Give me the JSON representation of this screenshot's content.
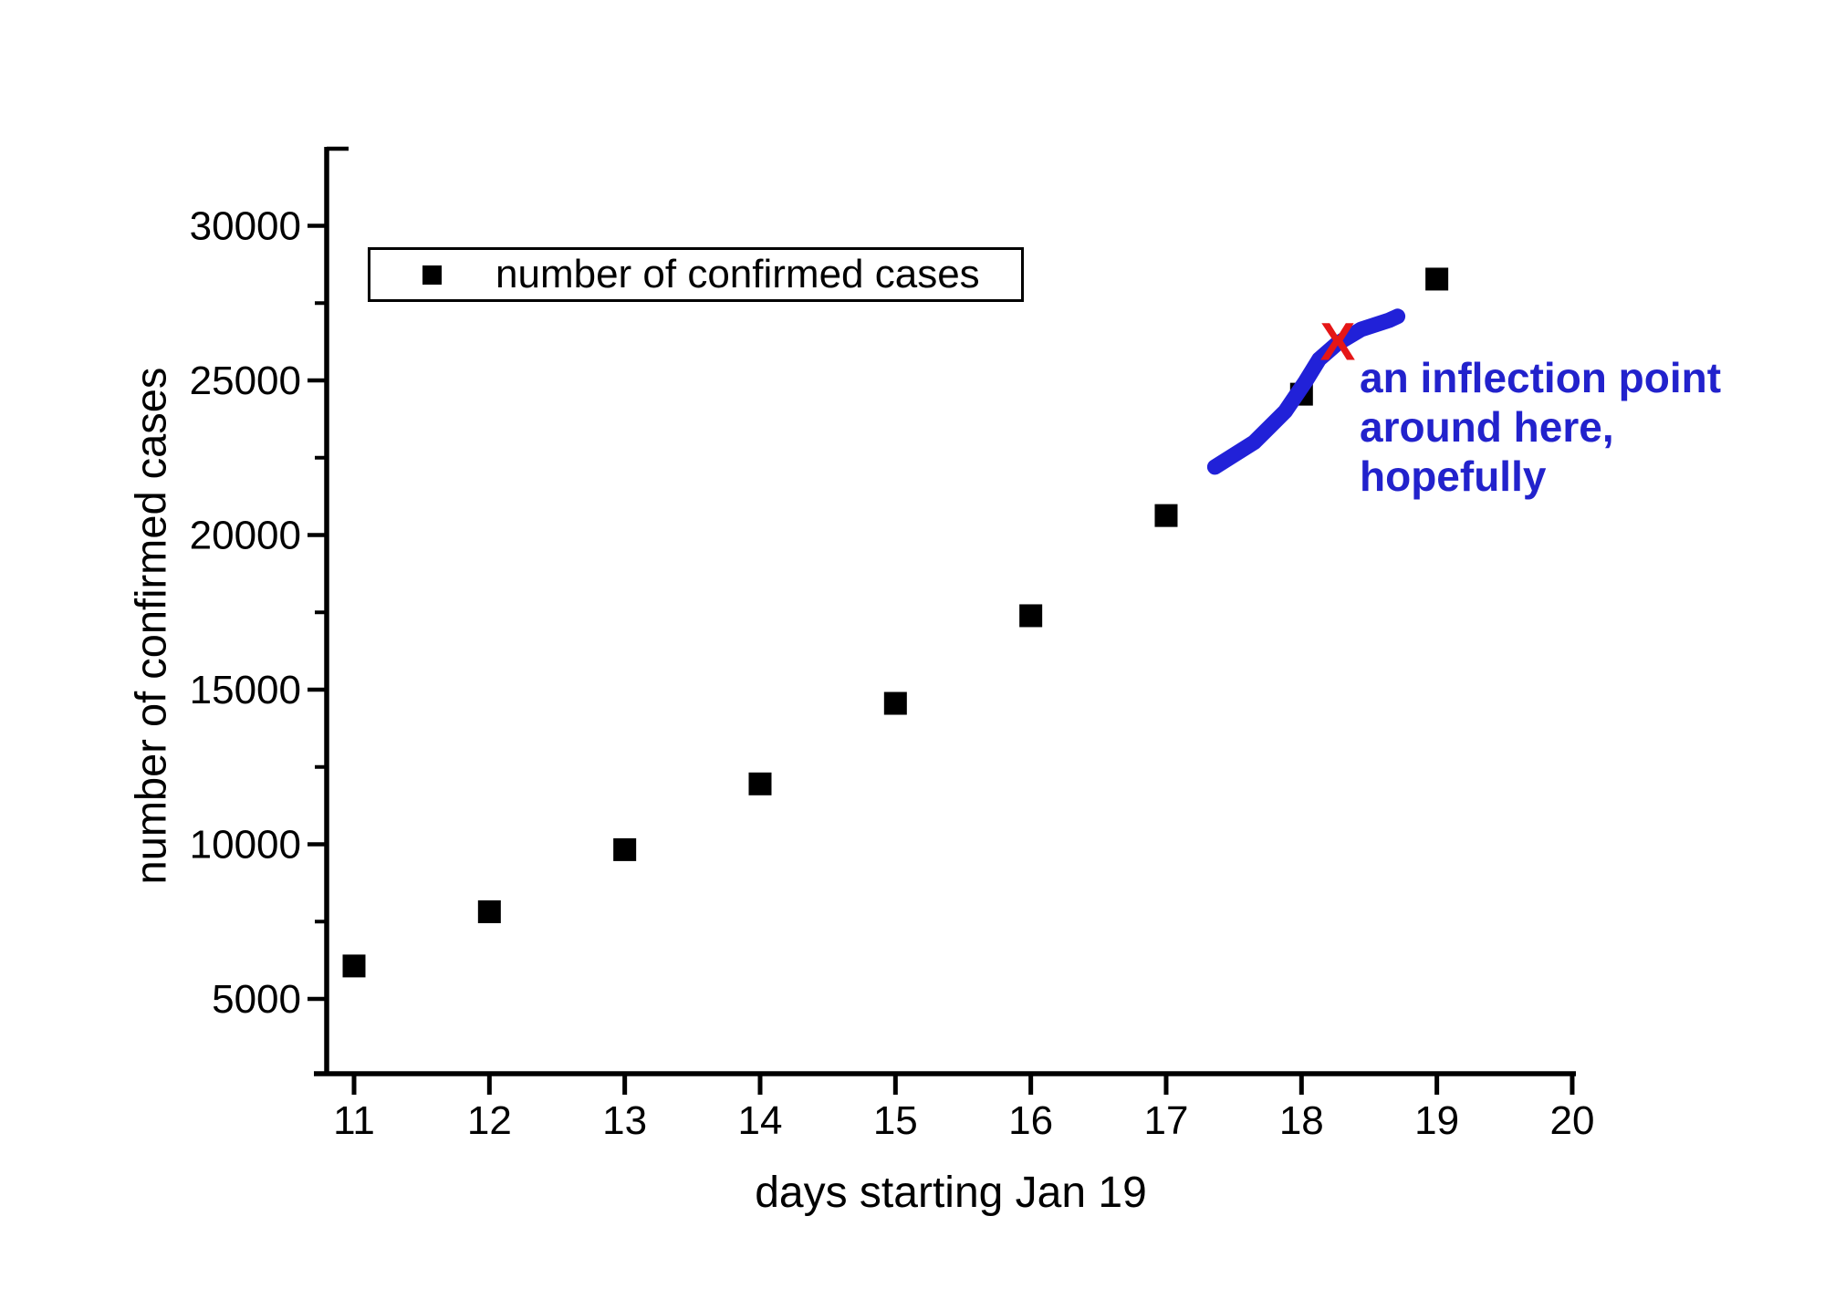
{
  "chart_data": {
    "type": "scatter",
    "title": "",
    "xlabel": "days starting Jan 19",
    "ylabel": "number of confirmed cases",
    "legend": {
      "label": "number of confirmed cases",
      "marker": "black-square-icon",
      "position": "top-left"
    },
    "x": [
      11,
      12,
      13,
      14,
      15,
      16,
      17,
      18,
      19
    ],
    "y": [
      6065,
      7818,
      9826,
      11953,
      14557,
      17391,
      20630,
      24554,
      28276
    ],
    "marker": "square",
    "marker_color": "#000000",
    "marker_size_px": 25,
    "xlim": [
      10.7,
      20.05
    ],
    "ylim": [
      2500,
      32500
    ],
    "x_ticks": [
      "11",
      "12",
      "13",
      "14",
      "15",
      "16",
      "17",
      "18",
      "19",
      "20"
    ],
    "x_tick_values": [
      11,
      12,
      13,
      14,
      15,
      16,
      17,
      18,
      19,
      20
    ],
    "y_ticks": [
      "5000",
      "10000",
      "15000",
      "20000",
      "25000",
      "30000"
    ],
    "y_tick_values": [
      5000,
      10000,
      15000,
      20000,
      25000,
      30000
    ],
    "y_minor_tick_values": [
      7500,
      12500,
      17500,
      22500,
      27500
    ],
    "grid": false,
    "axis_color": "#000000",
    "hand_annotations": {
      "curve": {
        "color": "#2121d8",
        "stroke_px": 17,
        "points": [
          [
            17.36,
            22200
          ],
          [
            17.65,
            23000
          ],
          [
            17.88,
            24000
          ],
          [
            18.03,
            24970
          ],
          [
            18.13,
            25680
          ],
          [
            18.26,
            26180
          ],
          [
            18.44,
            26650
          ],
          [
            18.65,
            26950
          ],
          [
            18.71,
            27070
          ]
        ]
      },
      "inflection_marker": {
        "glyph": "X",
        "color": "#e51616",
        "day": 18.26,
        "value": 26180
      },
      "note": {
        "color": "#2222cc",
        "lines": [
          "an inflection point",
          "around here,",
          "hopefully"
        ]
      }
    }
  }
}
